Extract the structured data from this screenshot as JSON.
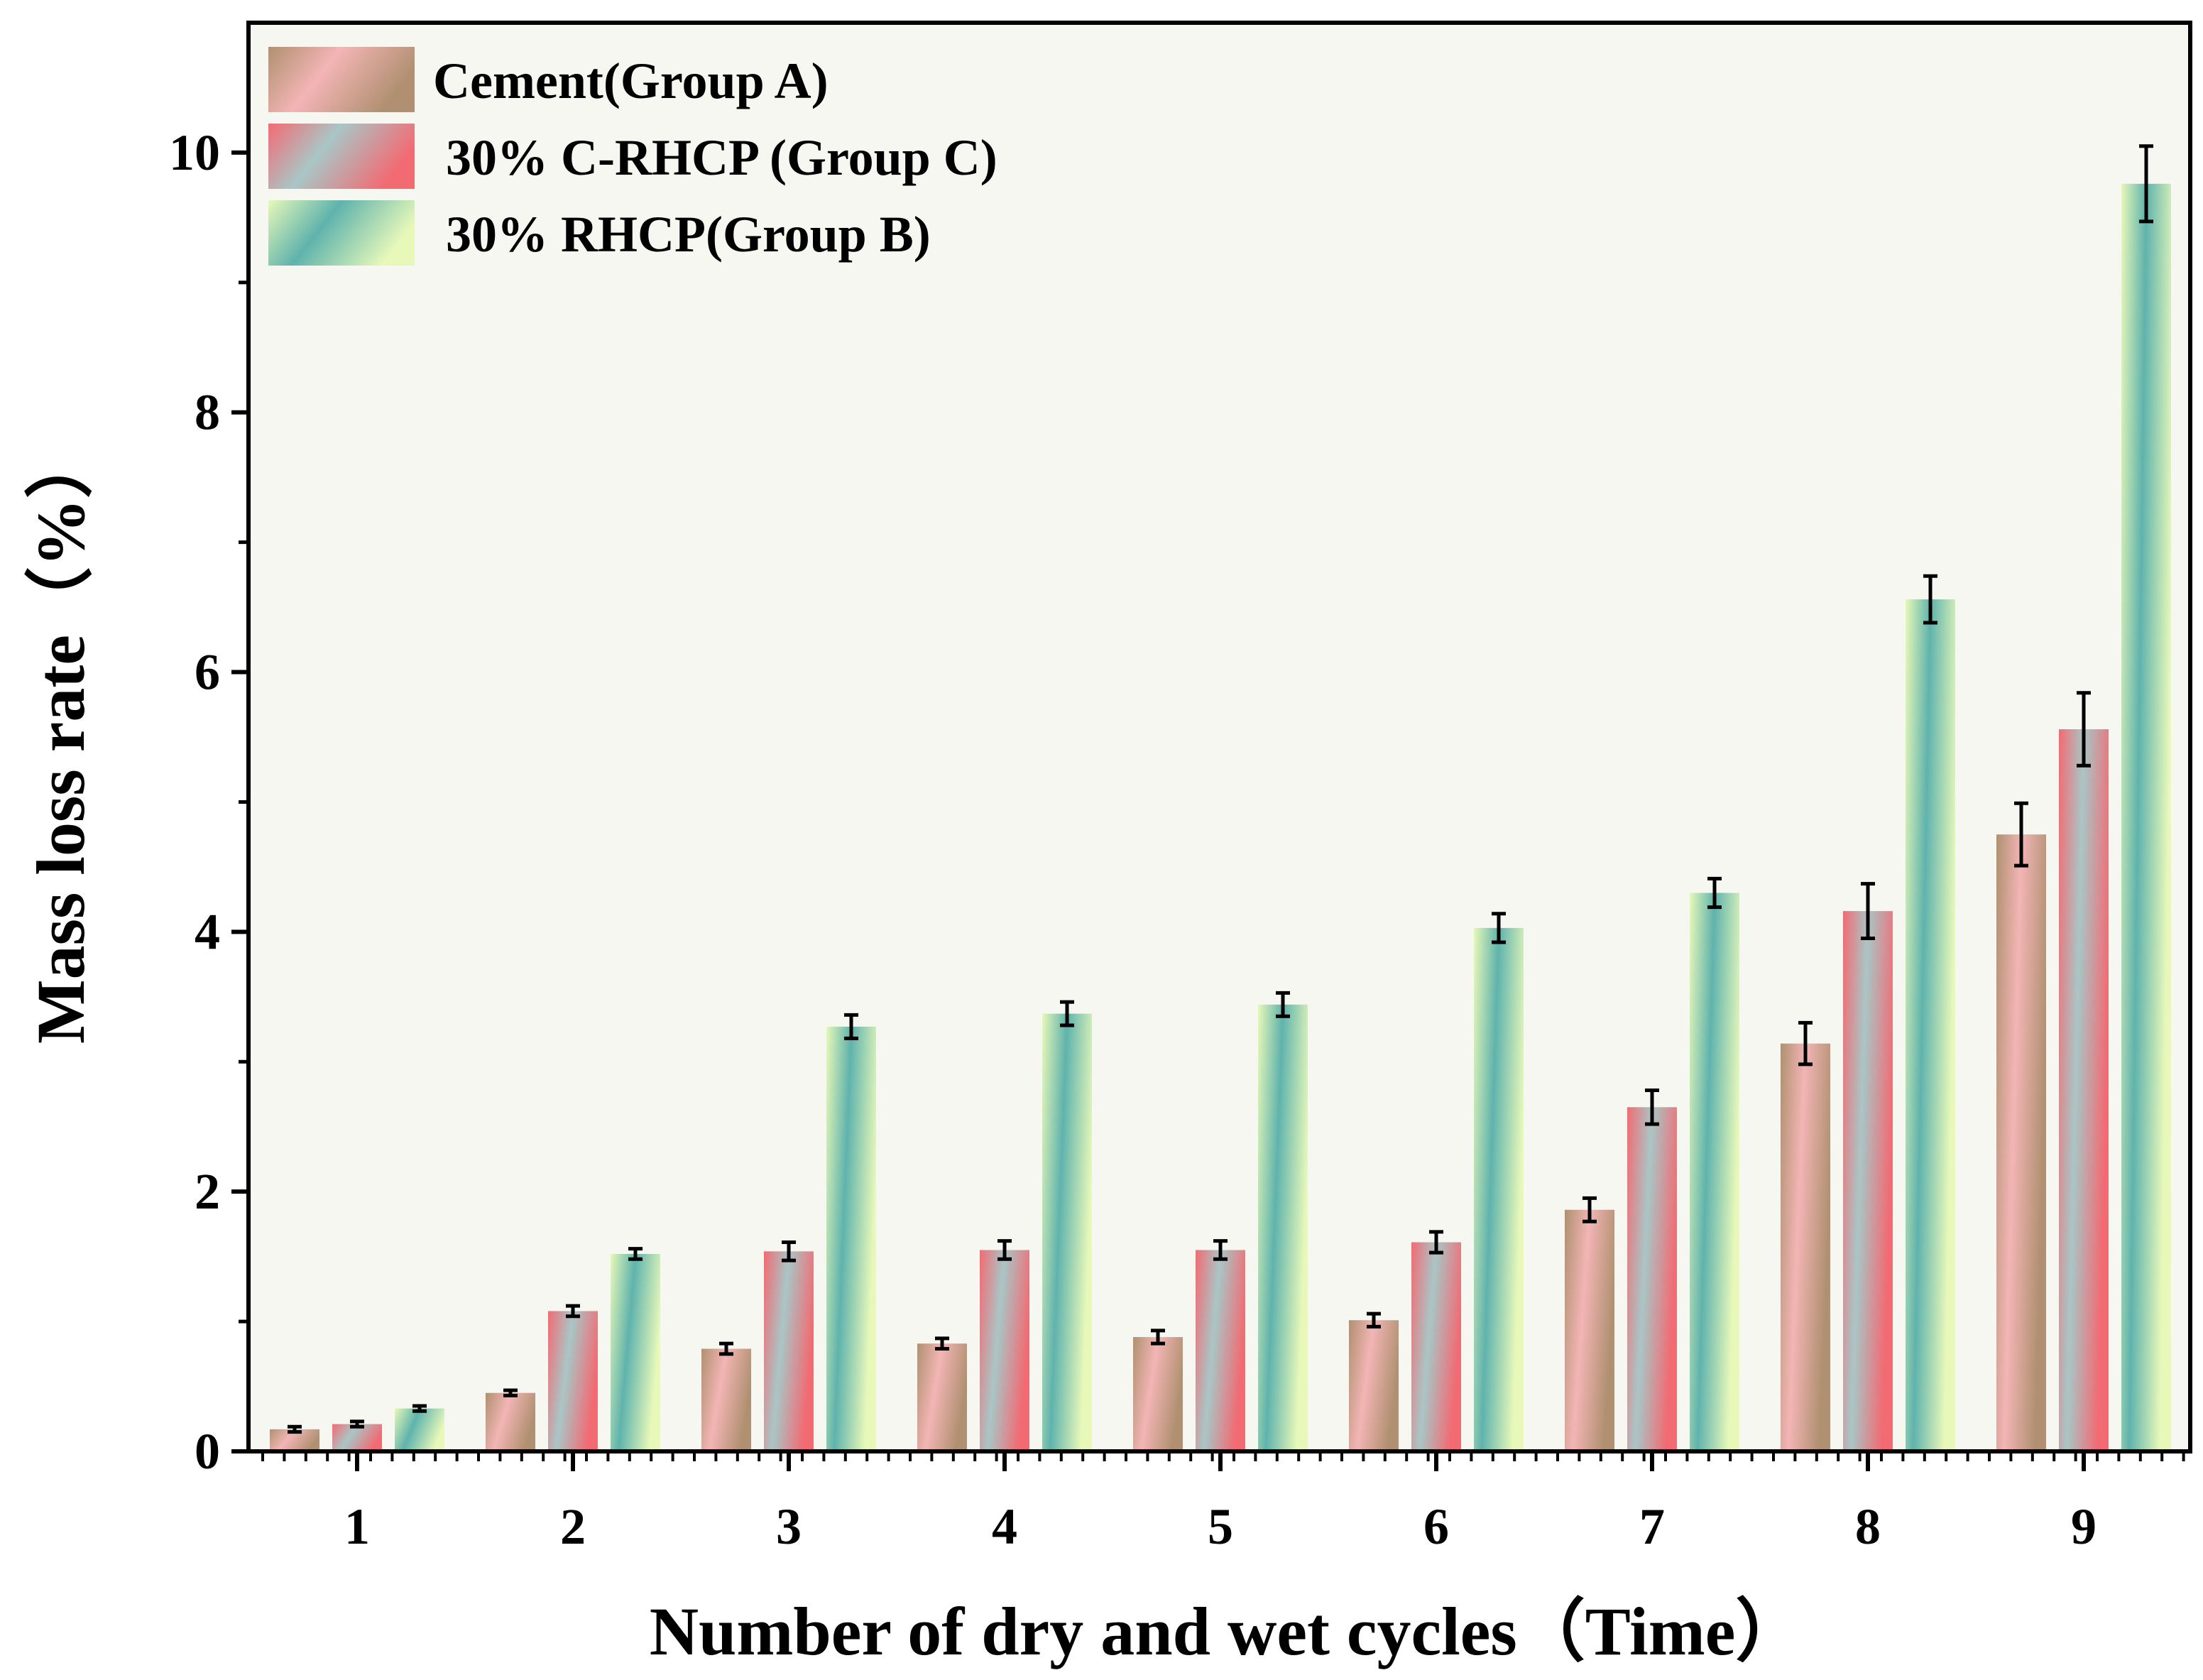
{
  "chart_data": {
    "type": "bar",
    "xlabel": "Number of dry and wet cycles（Time）",
    "ylabel": "Mass loss rate（%）",
    "categories": [
      "1",
      "2",
      "3",
      "4",
      "5",
      "6",
      "7",
      "8",
      "9"
    ],
    "ylim": [
      0,
      11
    ],
    "yticks": [
      "0",
      "2",
      "4",
      "6",
      "8",
      "10"
    ],
    "legend_position": "top-left",
    "grid": false,
    "series": [
      {
        "name": "Cement(Group A)",
        "values": [
          0.17,
          0.45,
          0.79,
          0.83,
          0.88,
          1.01,
          1.86,
          3.14,
          4.75
        ],
        "errors": [
          0.02,
          0.02,
          0.04,
          0.04,
          0.05,
          0.05,
          0.09,
          0.16,
          0.24
        ],
        "colors": [
          "#b09070",
          "#f3b5b5"
        ]
      },
      {
        "name": " 30% C-RHCP (Group C)",
        "values": [
          0.21,
          1.08,
          1.54,
          1.55,
          1.55,
          1.61,
          2.65,
          4.16,
          5.56
        ],
        "errors": [
          0.02,
          0.04,
          0.07,
          0.07,
          0.07,
          0.08,
          0.13,
          0.21,
          0.28
        ],
        "colors": [
          "#f26b73",
          "#a9c6c6"
        ]
      },
      {
        "name": " 30% RHCP(Group B)",
        "values": [
          0.33,
          1.52,
          3.27,
          3.37,
          3.44,
          4.03,
          4.3,
          6.56,
          9.76
        ],
        "errors": [
          0.02,
          0.04,
          0.09,
          0.09,
          0.09,
          0.11,
          0.11,
          0.18,
          0.29
        ],
        "colors": [
          "#e7f8b9",
          "#5fb3ad"
        ]
      }
    ]
  }
}
